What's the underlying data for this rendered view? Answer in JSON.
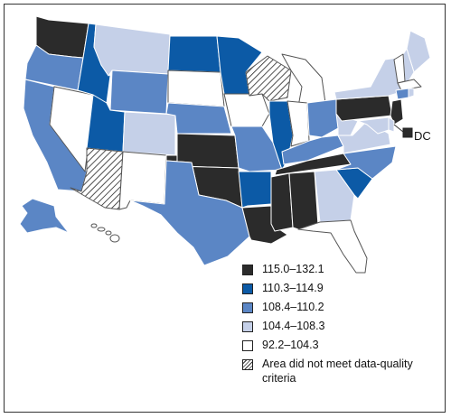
{
  "legend": [
    {
      "label": "115.0–132.1",
      "color": "#2b2b2b"
    },
    {
      "label": "110.3–114.9",
      "color": "#0c5aa6"
    },
    {
      "label": "108.4–110.2",
      "color": "#5b86c5"
    },
    {
      "label": "104.4–108.3",
      "color": "#c5d0e8"
    },
    {
      "label": "92.2–104.3",
      "color": "#ffffff"
    },
    {
      "label": "Area did not meet data-quality criteria",
      "pattern": "hatched"
    }
  ],
  "dc_label": "DC",
  "states": {
    "WA": "115.0–132.1",
    "OR": "108.4–110.2",
    "CA": "108.4–110.2",
    "NV": "92.2–104.3",
    "ID": "110.3–114.9",
    "MT": "104.4–108.3",
    "WY": "108.4–110.2",
    "UT": "110.3–114.9",
    "AZ": "Area did not meet data-quality criteria",
    "CO": "104.4–108.3",
    "NM": "92.2–104.3",
    "ND": "110.3–114.9",
    "SD": "92.2–104.3",
    "NE": "108.4–110.2",
    "KS": "115.0–132.1",
    "OK": "115.0–132.1",
    "TX": "108.4–110.2",
    "MN": "110.3–114.9",
    "IA": "92.2–104.3",
    "MO": "108.4–110.2",
    "AR": "110.3–114.9",
    "LA": "115.0–132.1",
    "WI": "Area did not meet data-quality criteria",
    "IL": "110.3–114.9",
    "MI": "92.2–104.3",
    "IN": "92.2–104.3",
    "OH": "108.4–110.2",
    "KY": "108.4–110.2",
    "TN": "115.0–132.1",
    "MS": "115.0–132.1",
    "AL": "115.0–132.1",
    "GA": "104.4–108.3",
    "FL": "92.2–104.3",
    "SC": "110.3–114.9",
    "NC": "108.4–110.2",
    "VA": "104.4–108.3",
    "WV": "104.4–108.3",
    "PA": "115.0–132.1",
    "NY": "104.4–108.3",
    "ME": "104.4–108.3",
    "NH": "104.4–108.3",
    "VT": "92.2–104.3",
    "MA": "92.2–104.3",
    "CT": "108.4–110.2",
    "RI": "104.4–108.3",
    "NJ": "115.0–132.1",
    "DE": "104.4–108.3",
    "MD": "104.4–108.3",
    "DC": "115.0–132.1",
    "AK": "108.4–110.2",
    "HI": "92.2–104.3"
  }
}
